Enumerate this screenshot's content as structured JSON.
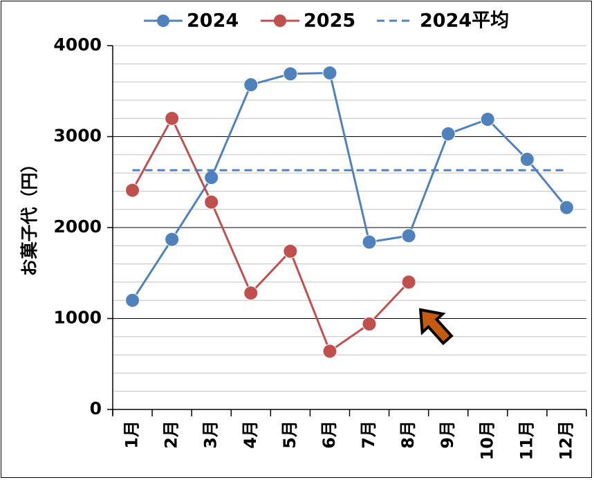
{
  "chart_data": {
    "type": "line",
    "categories": [
      "1月",
      "2月",
      "3月",
      "4月",
      "5月",
      "6月",
      "7月",
      "8月",
      "9月",
      "10月",
      "11月",
      "12月"
    ],
    "series": [
      {
        "name": "2024",
        "color": "#4f81bd",
        "values": [
          1200,
          1870,
          2550,
          3570,
          3690,
          3700,
          1840,
          1910,
          3030,
          3190,
          2750,
          2220
        ]
      },
      {
        "name": "2025",
        "color": "#c0504d",
        "values": [
          2410,
          3200,
          2280,
          1280,
          1740,
          640,
          940,
          1400,
          null,
          null,
          null,
          null
        ]
      },
      {
        "name": "2024平均",
        "color": "#4f81bd",
        "style": "dashed",
        "value": 2630
      }
    ],
    "ylabel": "お菓子代（円）",
    "ylim": [
      0,
      4000
    ],
    "yticks": [
      0,
      1000,
      2000,
      3000,
      4000
    ],
    "grid": true,
    "legend": "top",
    "annotation": {
      "type": "arrow",
      "color": "#c55a11",
      "target": "8月"
    }
  }
}
